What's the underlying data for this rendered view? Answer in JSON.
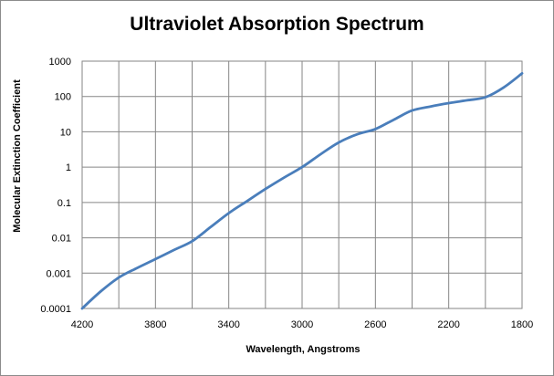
{
  "chart_data": {
    "type": "line",
    "title": "Ultraviolet Absorption Spectrum",
    "xlabel": "Wavelength, Angstroms",
    "ylabel": "Molecular Extinction Coefficient",
    "xlim": [
      4200,
      1800
    ],
    "x_reversed": true,
    "x_ticks": [
      "4200",
      "3800",
      "3400",
      "3000",
      "2600",
      "2200",
      "1800"
    ],
    "x_tick_values": [
      4200,
      3800,
      3400,
      3000,
      2600,
      2200,
      1800
    ],
    "x_minor_step": 200,
    "ylim": [
      0.0001,
      1000
    ],
    "y_scale": "log",
    "y_ticks": [
      "0.0001",
      "0.001",
      "0.01",
      "0.1",
      "1",
      "10",
      "100",
      "1000"
    ],
    "y_tick_values": [
      0.0001,
      0.001,
      0.01,
      0.1,
      1,
      10,
      100,
      1000
    ],
    "grid": true,
    "legend": "none",
    "series_color": "#4a7ebb",
    "series": [
      {
        "x": [
          4200,
          4100,
          4000,
          3900,
          3800,
          3700,
          3600,
          3500,
          3400,
          3300,
          3200,
          3100,
          3000,
          2900,
          2800,
          2700,
          2600,
          2500,
          2400,
          2300,
          2200,
          2100,
          2000,
          1900,
          1800
        ],
        "y": [
          0.0001,
          0.0003,
          0.00075,
          0.0014,
          0.0025,
          0.0045,
          0.008,
          0.02,
          0.05,
          0.11,
          0.24,
          0.5,
          1.0,
          2.3,
          5.0,
          8.5,
          12,
          22,
          40,
          52,
          65,
          78,
          95,
          180,
          450
        ]
      }
    ]
  }
}
